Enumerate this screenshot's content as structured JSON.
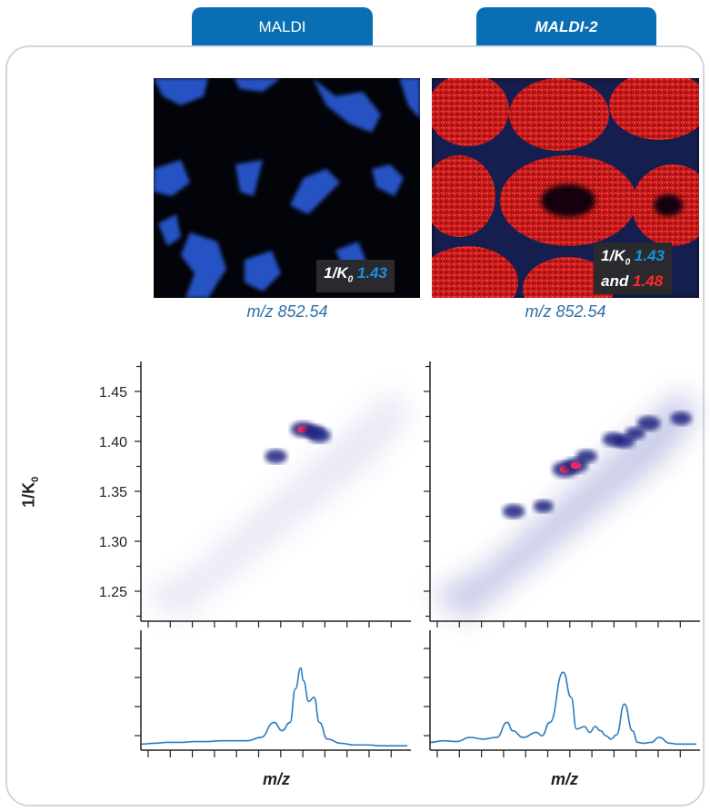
{
  "tabs": [
    {
      "label": "MALDI"
    },
    {
      "label": "MALDI-2"
    }
  ],
  "images": {
    "left_label": {
      "prefix": "1/K",
      "sub": "0",
      "value": "1.43"
    },
    "right_label": {
      "prefix": "1/K",
      "sub": "0",
      "value1": "1.43",
      "and": "and",
      "value2": "1.48"
    },
    "caption_left": "m/z 852.54",
    "caption_right": "m/z 852.54"
  },
  "colors": {
    "accent": "#0a6eb4",
    "blue": "#1b8fe0",
    "red": "#ff2a2a",
    "line": "#2b7bc0"
  },
  "chart_data": [
    {
      "type": "heatmap",
      "panel": "MALDI",
      "ylabel": "1/K",
      "ylabel_sub": "0",
      "ylim": [
        1.22,
        1.48
      ],
      "yticks": [
        1.25,
        1.3,
        1.35,
        1.4,
        1.45
      ],
      "xlim": [
        0,
        1
      ],
      "hotspots": [
        {
          "x": 0.6,
          "y": 1.412,
          "intensity": 0.9
        },
        {
          "x": 0.66,
          "y": 1.406,
          "intensity": 0.8
        },
        {
          "x": 0.5,
          "y": 1.385,
          "intensity": 0.7
        },
        {
          "x": 0.64,
          "y": 1.41,
          "intensity": 0.6
        }
      ]
    },
    {
      "type": "heatmap",
      "panel": "MALDI-2",
      "ylim": [
        1.22,
        1.48
      ],
      "xlim": [
        0,
        1
      ],
      "hotspots": [
        {
          "x": 0.31,
          "y": 1.33,
          "intensity": 0.7
        },
        {
          "x": 0.42,
          "y": 1.335,
          "intensity": 0.5
        },
        {
          "x": 0.5,
          "y": 1.372,
          "intensity": 1.0
        },
        {
          "x": 0.54,
          "y": 1.376,
          "intensity": 0.9
        },
        {
          "x": 0.58,
          "y": 1.385,
          "intensity": 0.6
        },
        {
          "x": 0.68,
          "y": 1.402,
          "intensity": 0.7
        },
        {
          "x": 0.72,
          "y": 1.4,
          "intensity": 0.6
        },
        {
          "x": 0.76,
          "y": 1.408,
          "intensity": 0.5
        },
        {
          "x": 0.81,
          "y": 1.418,
          "intensity": 0.8
        },
        {
          "x": 0.93,
          "y": 1.423,
          "intensity": 0.6
        }
      ]
    },
    {
      "type": "line",
      "panel": "MALDI",
      "xlabel": "m/z",
      "x": [
        0.0,
        0.05,
        0.1,
        0.15,
        0.2,
        0.25,
        0.3,
        0.35,
        0.4,
        0.45,
        0.5,
        0.53,
        0.56,
        0.58,
        0.6,
        0.61,
        0.63,
        0.65,
        0.67,
        0.7,
        0.75,
        0.8,
        0.85,
        0.9,
        0.95,
        1.0
      ],
      "y": [
        0.04,
        0.05,
        0.06,
        0.06,
        0.07,
        0.07,
        0.08,
        0.08,
        0.08,
        0.12,
        0.3,
        0.2,
        0.3,
        0.7,
        0.95,
        0.8,
        0.55,
        0.6,
        0.3,
        0.1,
        0.05,
        0.03,
        0.03,
        0.02,
        0.02,
        0.02
      ],
      "ylim": [
        0,
        1
      ]
    },
    {
      "type": "line",
      "panel": "MALDI-2",
      "xlabel": "m/z",
      "x": [
        0.0,
        0.05,
        0.1,
        0.15,
        0.2,
        0.25,
        0.29,
        0.31,
        0.35,
        0.4,
        0.42,
        0.45,
        0.5,
        0.53,
        0.55,
        0.58,
        0.6,
        0.62,
        0.64,
        0.66,
        0.68,
        0.7,
        0.73,
        0.76,
        0.78,
        0.8,
        0.83,
        0.86,
        0.9,
        0.93,
        0.95,
        1.0
      ],
      "y": [
        0.06,
        0.08,
        0.07,
        0.12,
        0.1,
        0.12,
        0.3,
        0.2,
        0.12,
        0.18,
        0.14,
        0.3,
        0.9,
        0.6,
        0.22,
        0.25,
        0.18,
        0.25,
        0.2,
        0.14,
        0.1,
        0.15,
        0.52,
        0.2,
        0.06,
        0.05,
        0.06,
        0.12,
        0.05,
        0.04,
        0.04,
        0.04
      ],
      "ylim": [
        0,
        1
      ]
    }
  ]
}
